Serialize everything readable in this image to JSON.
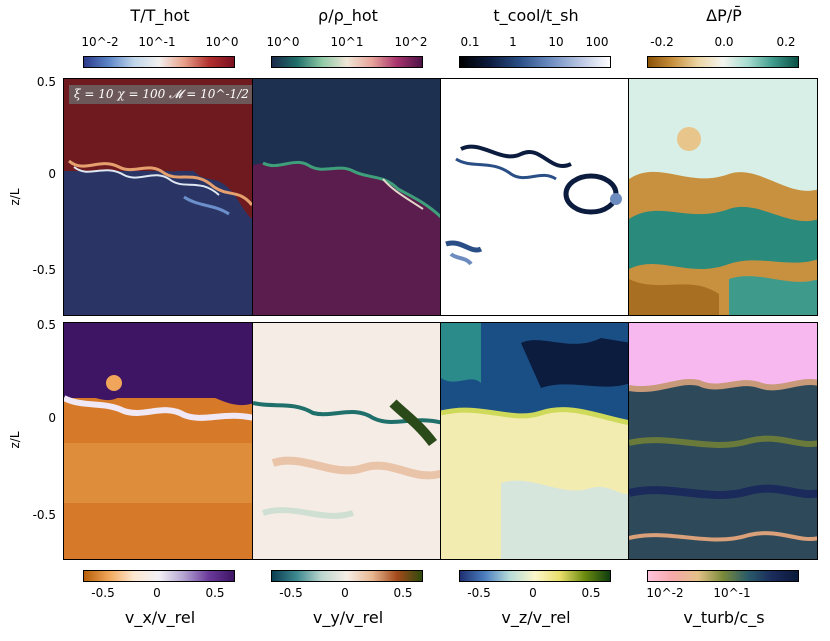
{
  "top_titles": [
    "T/T_hot",
    "ρ/ρ_hot",
    "t_cool/t_sh",
    "ΔP/P̄"
  ],
  "bottom_titles": [
    "v_x/v_rel",
    "v_y/v_rel",
    "v_z/v_rel",
    "v_turb/c_s"
  ],
  "top_ticks": [
    [
      "10^-2",
      "10^-1",
      "10^0"
    ],
    [
      "10^0",
      "10^1",
      "10^2"
    ],
    [
      "0.1",
      "1",
      "10",
      "100"
    ],
    [
      "-0.2",
      "0.0",
      "0.2"
    ]
  ],
  "bottom_ticks": [
    [
      "-0.5",
      "0",
      "0.5"
    ],
    [
      "-0.5",
      "0",
      "0.5"
    ],
    [
      "-0.5",
      "0",
      "0.5"
    ],
    [
      "10^-2",
      "10^-1"
    ]
  ],
  "y_axis_label": "z/L",
  "y_ticks": [
    "0.5",
    "0",
    "-0.5"
  ],
  "annotation": "ξ = 10  χ = 100  𝓜 = 10^-1/2",
  "colors": {
    "hot": "#6e1a1f",
    "cold": "#2a3566",
    "dens_low": "#1e3050",
    "dens_high": "#5a1d4e",
    "vx_top": "#3e1565",
    "vx_bottom": "#d67a2a",
    "vturb_top": "#f7b8f0"
  }
}
